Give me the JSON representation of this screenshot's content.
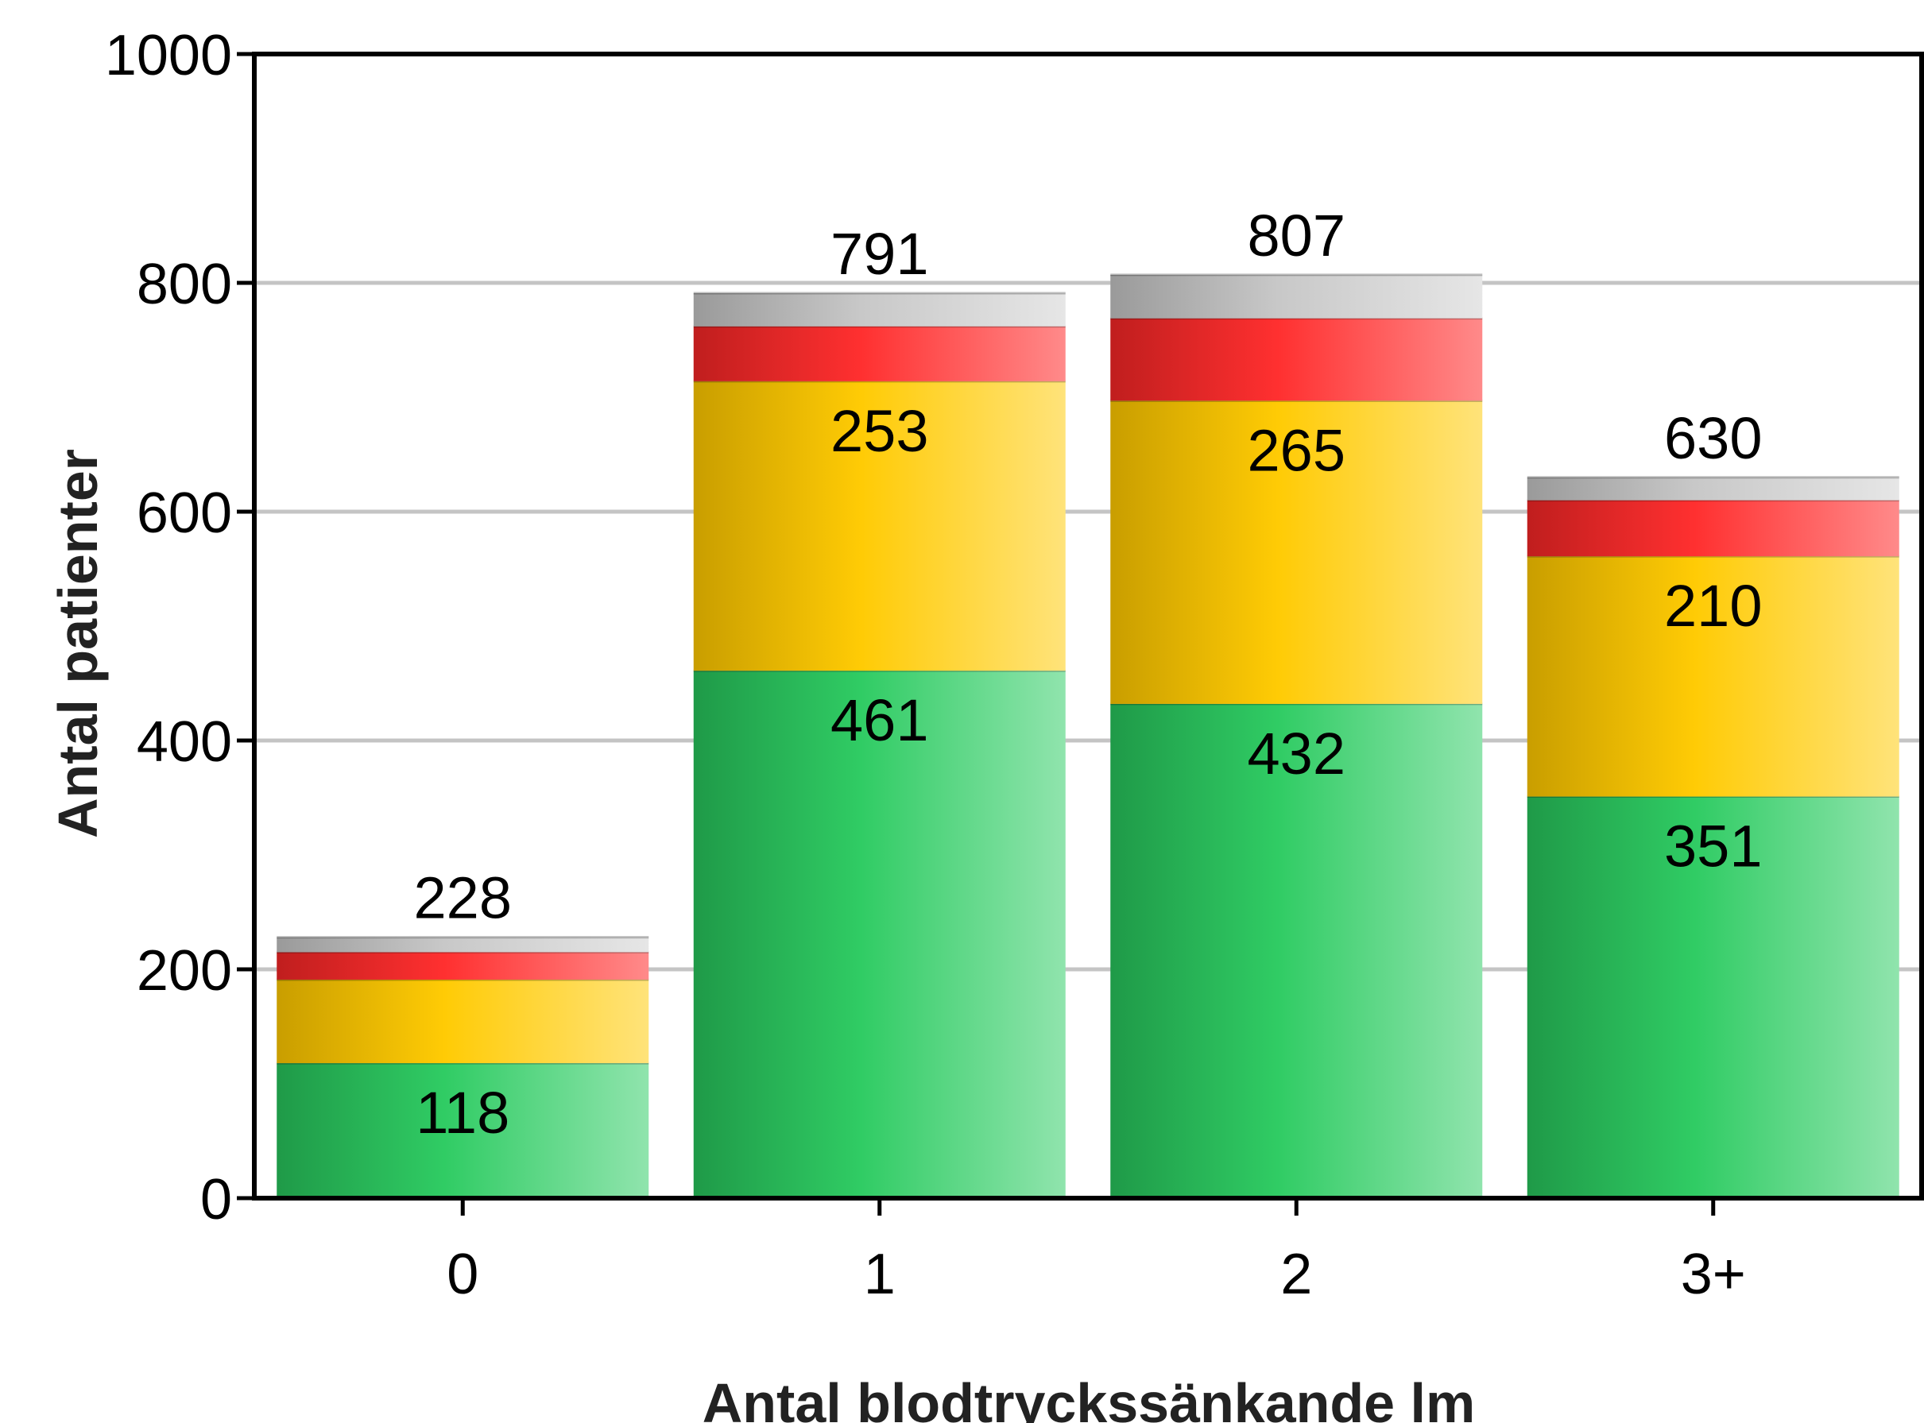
{
  "chart_data": {
    "type": "bar",
    "stacked": true,
    "categories": [
      "0",
      "1",
      "2",
      "3+"
    ],
    "xlabel": "Antal blodtryckssänkande lm",
    "ylabel": "Antal patienter",
    "ylim": [
      0,
      1000
    ],
    "yticks": [
      0,
      200,
      400,
      600,
      800,
      1000
    ],
    "grid": true,
    "series": [
      {
        "values": [
          118,
          461,
          432,
          351
        ],
        "color": "#2db85a"
      },
      {
        "values": [
          73,
          253,
          265,
          210
        ],
        "color": "#f5c400"
      },
      {
        "values": [
          24,
          48,
          72,
          49
        ],
        "color": "#ee2a2a"
      },
      {
        "values": [
          13,
          29,
          38,
          20
        ],
        "color": "#b8b8b8"
      }
    ],
    "segment_labels": [
      [
        "118",
        "",
        "",
        ""
      ],
      [
        "461",
        "253",
        "",
        ""
      ],
      [
        "432",
        "265",
        "",
        ""
      ],
      [
        "351",
        "210",
        "",
        ""
      ]
    ],
    "totals": [
      228,
      791,
      807,
      630
    ]
  }
}
